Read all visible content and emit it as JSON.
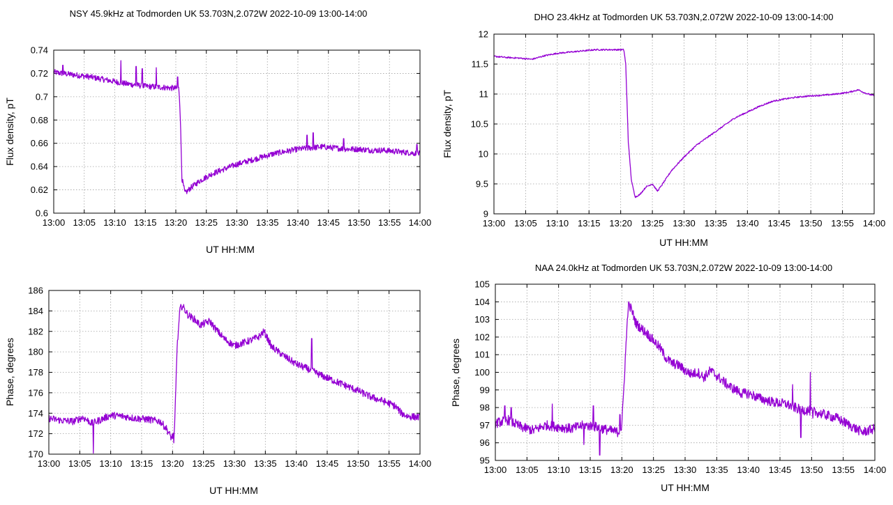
{
  "series_color": "#9400d3",
  "chart_data": [
    {
      "type": "line",
      "title": "NSY 45.9kHz at Todmorden UK 53.703N,2.072W 2022-10-09 13:00-14:00",
      "xlabel": "UT HH:MM",
      "ylabel": "Flux density, pT",
      "xlim": [
        0,
        60
      ],
      "ylim": [
        0.6,
        0.74
      ],
      "xticks": [
        "13:00",
        "13:05",
        "13:10",
        "13:15",
        "13:20",
        "13:25",
        "13:30",
        "13:35",
        "13:40",
        "13:45",
        "13:50",
        "13:55",
        "14:00"
      ],
      "yticks": [
        "0.6",
        "0.62",
        "0.64",
        "0.66",
        "0.68",
        "0.7",
        "0.72",
        "0.74"
      ],
      "ytick_values": [
        0.6,
        0.62,
        0.64,
        0.66,
        0.68,
        0.7,
        0.72,
        0.74
      ],
      "series": [
        {
          "x": [
            0,
            3,
            6,
            9,
            12,
            15,
            18,
            20.5,
            20.7,
            21,
            21.5,
            22.5,
            24,
            26,
            28,
            30,
            32,
            34,
            36,
            38,
            40,
            42,
            44,
            46,
            48,
            50,
            52,
            54,
            56,
            58,
            60
          ],
          "y": [
            0.721,
            0.719,
            0.717,
            0.714,
            0.711,
            0.709,
            0.708,
            0.707,
            0.69,
            0.63,
            0.617,
            0.622,
            0.628,
            0.634,
            0.638,
            0.642,
            0.645,
            0.648,
            0.651,
            0.653,
            0.655,
            0.656,
            0.657,
            0.656,
            0.655,
            0.655,
            0.654,
            0.654,
            0.653,
            0.652,
            0.651
          ],
          "noise": 0.0025,
          "spikes": [
            [
              1.5,
              0.727
            ],
            [
              11,
              0.731
            ],
            [
              13.5,
              0.726
            ],
            [
              14.5,
              0.724
            ],
            [
              16.8,
              0.725
            ],
            [
              20.3,
              0.717
            ],
            [
              41.5,
              0.667
            ],
            [
              42.5,
              0.669
            ],
            [
              47.5,
              0.664
            ],
            [
              59.5,
              0.659
            ]
          ]
        }
      ]
    },
    {
      "type": "line",
      "title": "DHO 23.4kHz at Todmorden UK 53.703N,2.072W 2022-10-09 13:00-14:00",
      "xlabel": "UT HH:MM",
      "ylabel": "Flux density, pT",
      "xlim": [
        0,
        60
      ],
      "ylim": [
        9,
        12
      ],
      "xticks": [
        "13:00",
        "13:05",
        "13:10",
        "13:15",
        "13:20",
        "13:25",
        "13:30",
        "13:35",
        "13:40",
        "13:45",
        "13:50",
        "13:55",
        "14:00"
      ],
      "yticks": [
        "9",
        "9.5",
        "10",
        "10.5",
        "11",
        "11.5",
        "12"
      ],
      "ytick_values": [
        9,
        9.5,
        10,
        10.5,
        11,
        11.5,
        12
      ],
      "series": [
        {
          "x": [
            0,
            2,
            4,
            6,
            8,
            10,
            12,
            14,
            16,
            18,
            20.5,
            20.8,
            21.2,
            21.7,
            22.3,
            23,
            24,
            25,
            25.8,
            26.5,
            28,
            30,
            32,
            34,
            36,
            38,
            40,
            42,
            44,
            46,
            48,
            50,
            52,
            54,
            56,
            57.5,
            58.5,
            60
          ],
          "y": [
            11.63,
            11.61,
            11.6,
            11.58,
            11.64,
            11.68,
            11.7,
            11.72,
            11.74,
            11.74,
            11.74,
            11.5,
            10.2,
            9.55,
            9.28,
            9.32,
            9.45,
            9.5,
            9.38,
            9.48,
            9.72,
            9.95,
            10.15,
            10.3,
            10.45,
            10.6,
            10.7,
            10.8,
            10.88,
            10.92,
            10.95,
            10.97,
            10.98,
            11.0,
            11.03,
            11.07,
            11.02,
            10.97
          ],
          "noise": 0.012,
          "spikes": []
        }
      ]
    },
    {
      "type": "line",
      "title": "",
      "xlabel": "UT HH:MM",
      "ylabel": "Phase, degrees",
      "xlim": [
        0,
        60
      ],
      "ylim": [
        170,
        186
      ],
      "xticks": [
        "13:00",
        "13:05",
        "13:10",
        "13:15",
        "13:20",
        "13:25",
        "13:30",
        "13:35",
        "13:40",
        "13:45",
        "13:50",
        "13:55",
        "14:00"
      ],
      "yticks": [
        "170",
        "172",
        "174",
        "176",
        "178",
        "180",
        "182",
        "184",
        "186"
      ],
      "ytick_values": [
        170,
        172,
        174,
        176,
        178,
        180,
        182,
        184,
        186
      ],
      "series": [
        {
          "x": [
            0,
            2,
            4,
            5.5,
            7,
            8.5,
            10,
            12,
            14,
            16,
            18,
            19,
            19.8,
            20.3,
            20.7,
            21.2,
            21.6,
            22.5,
            23.5,
            24.5,
            26,
            27,
            28.5,
            30,
            31.5,
            33,
            34,
            34.8,
            36,
            38,
            40,
            42,
            44,
            46,
            48,
            50,
            52,
            54,
            56,
            57,
            58,
            60
          ],
          "y": [
            173.5,
            173.3,
            173.2,
            173.6,
            173,
            173.4,
            173.8,
            173.7,
            173.5,
            173.4,
            173.2,
            172.5,
            171.6,
            172,
            180,
            184.2,
            184.5,
            183.6,
            183.2,
            182.6,
            183,
            182.2,
            181.2,
            180.6,
            180.9,
            181.2,
            181.5,
            182,
            180.5,
            179.6,
            178.8,
            178.3,
            177.7,
            177.2,
            176.7,
            176.2,
            175.6,
            175.2,
            174.7,
            174.0,
            173.7,
            173.6
          ],
          "noise": 0.35,
          "spikes": [
            [
              7.2,
              170.1
            ],
            [
              42.5,
              181.3
            ],
            [
              20.2,
              171.1
            ]
          ]
        }
      ]
    },
    {
      "type": "line",
      "title": "NAA 24.0kHz at Todmorden UK 53.703N,2.072W 2022-10-09 13:00-14:00",
      "xlabel": "UT HH:MM",
      "ylabel": "Phase, degrees",
      "xlim": [
        0,
        60
      ],
      "ylim": [
        95,
        105
      ],
      "xticks": [
        "13:00",
        "13:05",
        "13:10",
        "13:15",
        "13:20",
        "13:25",
        "13:30",
        "13:35",
        "13:40",
        "13:45",
        "13:50",
        "13:55",
        "14:00"
      ],
      "yticks": [
        "95",
        "96",
        "97",
        "98",
        "99",
        "100",
        "101",
        "102",
        "103",
        "104",
        "105"
      ],
      "ytick_values": [
        95,
        96,
        97,
        98,
        99,
        100,
        101,
        102,
        103,
        104,
        105
      ],
      "series": [
        {
          "x": [
            0,
            2,
            4,
            6,
            8,
            10,
            12,
            14,
            16,
            18,
            19.5,
            20,
            20.5,
            21,
            21.5,
            22.2,
            23,
            24,
            25,
            26,
            27,
            28,
            29,
            30,
            31,
            32,
            33,
            34,
            35,
            36,
            37,
            38,
            39,
            40,
            42,
            44,
            46,
            48,
            50,
            52,
            54,
            56,
            58,
            60
          ],
          "y": [
            97.1,
            97.3,
            96.9,
            96.7,
            97.0,
            96.9,
            96.8,
            97.0,
            96.9,
            96.7,
            96.6,
            96.9,
            100.5,
            103.8,
            103.6,
            102.8,
            102.5,
            102.2,
            101.8,
            101.4,
            100.8,
            100.5,
            100.4,
            100.1,
            99.9,
            100.0,
            99.7,
            100.1,
            99.8,
            99.5,
            99.2,
            99.0,
            98.8,
            98.8,
            98.5,
            98.3,
            98.2,
            97.9,
            97.8,
            97.6,
            97.4,
            97.0,
            96.6,
            96.8
          ],
          "noise": 0.28,
          "spikes": [
            [
              1.5,
              98.1
            ],
            [
              2.5,
              98.0
            ],
            [
              9,
              98.2
            ],
            [
              14,
              95.9
            ],
            [
              15.5,
              98.1
            ],
            [
              16.5,
              95.3
            ],
            [
              19.7,
              97.6
            ],
            [
              47,
              99.3
            ],
            [
              48.3,
              96.3
            ],
            [
              49.8,
              100.0
            ],
            [
              50.2,
              97.4
            ]
          ]
        }
      ]
    }
  ]
}
